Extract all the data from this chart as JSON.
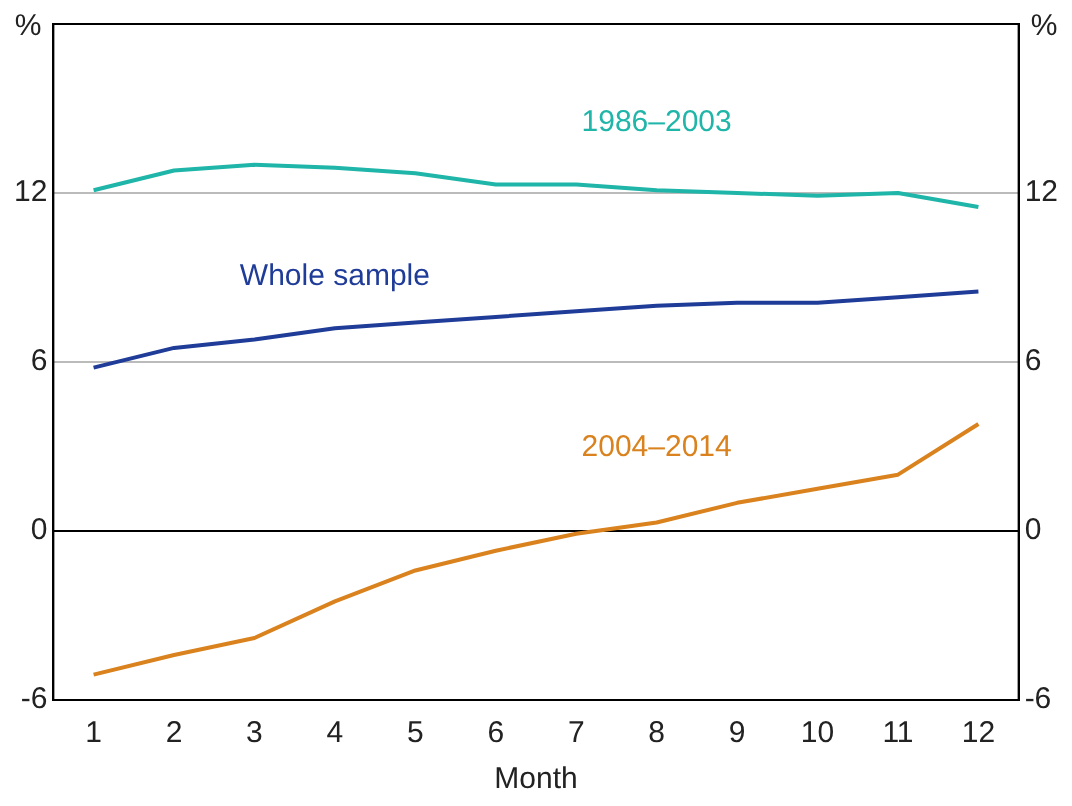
{
  "chart_data": {
    "type": "line",
    "xlabel": "Month",
    "ylabel": "%",
    "y2label": "%",
    "x": [
      1,
      2,
      3,
      4,
      5,
      6,
      7,
      8,
      9,
      10,
      11,
      12
    ],
    "xlim": [
      0.5,
      12.5
    ],
    "xticks": [
      1,
      2,
      3,
      4,
      5,
      6,
      7,
      8,
      9,
      10,
      11,
      12
    ],
    "ylim": [
      -6,
      18
    ],
    "yticks": [
      -6,
      0,
      6,
      12
    ],
    "y2lim": [
      -6,
      18
    ],
    "y2ticks": [
      -6,
      0,
      6,
      12
    ],
    "grid": "y",
    "legend": false,
    "marker": "none",
    "line_style": "solid",
    "series": [
      {
        "name": "1986–2003",
        "color": "#1fb5a8",
        "values": [
          12.1,
          12.8,
          13.0,
          12.9,
          12.7,
          12.3,
          12.3,
          12.1,
          12.0,
          11.9,
          12.0,
          11.5
        ]
      },
      {
        "name": "Whole sample",
        "color": "#1f3c98",
        "values": [
          5.8,
          6.5,
          6.8,
          7.2,
          7.4,
          7.6,
          7.8,
          8.0,
          8.1,
          8.1,
          8.3,
          8.5
        ]
      },
      {
        "name": "2004–2014",
        "color": "#d9821e",
        "values": [
          -5.1,
          -4.4,
          -3.8,
          -2.5,
          -1.4,
          -0.7,
          -0.1,
          0.3,
          1.0,
          1.5,
          2.0,
          3.8
        ]
      }
    ]
  }
}
